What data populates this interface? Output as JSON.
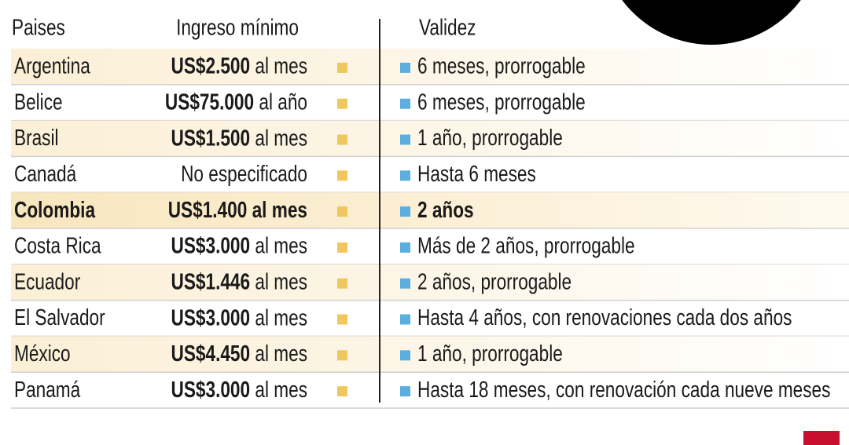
{
  "table": {
    "header": [
      "Paises",
      "Ingreso mínimo",
      "Validez"
    ],
    "highlight_row": 4,
    "rows": [
      {
        "country": "Argentina",
        "amount": "US$2.500",
        "unit": "al mes",
        "validity": "6 meses, prorrogable"
      },
      {
        "country": "Belice",
        "amount": "US$75.000",
        "unit": "al año",
        "validity": "6 meses, prorrogable"
      },
      {
        "country": "Brasil",
        "amount": "US$1.500",
        "unit": "al mes",
        "validity": "1 año, prorrogable"
      },
      {
        "country": "Canadá",
        "amount": "No especificado",
        "validity": "Hasta 6 meses"
      },
      {
        "country": "Colombia",
        "amount": "US$1.400",
        "unit": "al mes",
        "validity": "2 años"
      },
      {
        "country": "Costa Rica",
        "amount": "US$3.000",
        "unit": "al mes",
        "validity": "Más de 2 años, prorrogable"
      },
      {
        "country": "Ecuador",
        "amount": "US$1.446",
        "unit": "al mes",
        "validity": "2 años, prorrogable"
      },
      {
        "country": "El Salvador",
        "amount": "US$3.000",
        "unit": "al mes",
        "validity": "Hasta 4 años, con renovaciones cada dos años"
      },
      {
        "country": "México",
        "amount": "US$4.450",
        "unit": "al mes",
        "validity": "1 año, prorrogable"
      },
      {
        "country": "Panamá",
        "amount": "US$3.000",
        "unit": "al mes",
        "validity": "Hasta 18 meses, con renovación cada nueve meses"
      }
    ]
  }
}
